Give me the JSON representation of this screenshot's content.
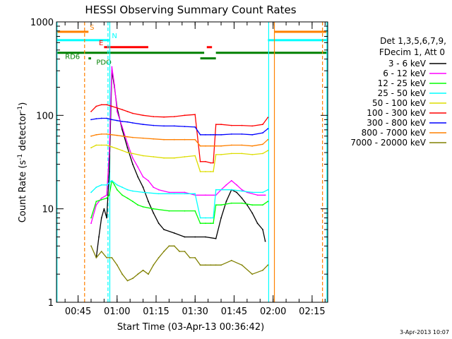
{
  "chart_data": {
    "type": "line",
    "title": "HESSI Observing Summary Count Rates",
    "xlabel": "Start Time (03-Apr-13 00:36:42)",
    "ylabel_main": "Count Rate (s",
    "ylabel_sup1": "-1",
    "ylabel_mid": " detector",
    "ylabel_sup2": "-1",
    "ylabel_end": ")",
    "y_scale": "log",
    "ylim": [
      1,
      1000
    ],
    "xlim_minutes": [
      36.7,
      141
    ],
    "x_ticks": [
      {
        "t": 45,
        "label": "00:45"
      },
      {
        "t": 60,
        "label": "01:00"
      },
      {
        "t": 75,
        "label": "01:15"
      },
      {
        "t": 90,
        "label": "01:30"
      },
      {
        "t": 105,
        "label": "01:45"
      },
      {
        "t": 120,
        "label": "02:00"
      },
      {
        "t": 135,
        "label": "02:15"
      }
    ],
    "y_ticks": [
      {
        "v": 1,
        "label": "1"
      },
      {
        "v": 10,
        "label": "10"
      },
      {
        "v": 100,
        "label": "100"
      },
      {
        "v": 1000,
        "label": "1000"
      }
    ],
    "timestamp": "3-Apr-2013 10:07",
    "legend": {
      "header1": "Det 1,3,5,6,7,9,",
      "header2": "FDecim 1, Att 0",
      "placement": "right"
    },
    "series": [
      {
        "name": "3 - 6 keV",
        "color": "#000000",
        "points": [
          [
            52,
            3
          ],
          [
            53,
            5
          ],
          [
            54,
            8
          ],
          [
            55,
            10
          ],
          [
            56,
            8
          ],
          [
            57,
            25
          ],
          [
            58,
            300
          ],
          [
            59,
            200
          ],
          [
            60,
            120
          ],
          [
            62,
            70
          ],
          [
            64,
            45
          ],
          [
            66,
            30
          ],
          [
            68,
            22
          ],
          [
            70,
            17
          ],
          [
            72,
            12
          ],
          [
            74,
            9
          ],
          [
            76,
            7
          ],
          [
            78,
            6
          ],
          [
            82,
            5.5
          ],
          [
            86,
            5
          ],
          [
            90,
            5
          ],
          [
            94,
            5
          ],
          [
            98,
            4.8
          ],
          [
            100,
            8
          ],
          [
            102,
            12
          ],
          [
            104,
            16
          ],
          [
            106,
            15
          ],
          [
            108,
            13
          ],
          [
            110,
            11
          ],
          [
            112,
            9
          ],
          [
            114,
            7
          ],
          [
            116,
            6
          ],
          [
            117,
            4.5
          ]
        ]
      },
      {
        "name": "6 - 12 keV",
        "color": "#ff00ff",
        "points": [
          [
            50,
            7
          ],
          [
            52,
            11
          ],
          [
            54,
            13
          ],
          [
            56,
            14
          ],
          [
            57,
            40
          ],
          [
            58,
            330
          ],
          [
            59,
            210
          ],
          [
            60,
            110
          ],
          [
            62,
            75
          ],
          [
            64,
            50
          ],
          [
            66,
            35
          ],
          [
            68,
            28
          ],
          [
            70,
            22
          ],
          [
            72,
            20
          ],
          [
            74,
            17
          ],
          [
            76,
            16
          ],
          [
            80,
            15
          ],
          [
            86,
            15
          ],
          [
            90,
            14
          ],
          [
            94,
            14
          ],
          [
            98,
            14
          ],
          [
            100,
            16
          ],
          [
            102,
            18
          ],
          [
            104,
            20
          ],
          [
            106,
            18
          ],
          [
            108,
            16
          ],
          [
            110,
            15
          ],
          [
            114,
            14
          ],
          [
            117,
            14
          ]
        ]
      },
      {
        "name": "12 - 25 keV",
        "color": "#00ff00",
        "points": [
          [
            50,
            8
          ],
          [
            52,
            12
          ],
          [
            54,
            12.5
          ],
          [
            56,
            13
          ],
          [
            57,
            14
          ],
          [
            58,
            20
          ],
          [
            59,
            18
          ],
          [
            60,
            16
          ],
          [
            62,
            14
          ],
          [
            64,
            13
          ],
          [
            66,
            12
          ],
          [
            68,
            11
          ],
          [
            70,
            10.5
          ],
          [
            74,
            10
          ],
          [
            80,
            9.5
          ],
          [
            86,
            9.5
          ],
          [
            90,
            9.5
          ],
          [
            92,
            7
          ],
          [
            94,
            7
          ],
          [
            96,
            7
          ],
          [
            97,
            7
          ],
          [
            98,
            11
          ],
          [
            100,
            11
          ],
          [
            104,
            11.5
          ],
          [
            108,
            11.5
          ],
          [
            112,
            11
          ],
          [
            116,
            11
          ],
          [
            118,
            12
          ]
        ]
      },
      {
        "name": "25 - 50 keV",
        "color": "#00ffff",
        "points": [
          [
            50,
            15
          ],
          [
            52,
            17
          ],
          [
            54,
            18
          ],
          [
            56,
            18
          ],
          [
            58,
            20
          ],
          [
            60,
            18
          ],
          [
            62,
            17
          ],
          [
            64,
            16
          ],
          [
            66,
            15.5
          ],
          [
            70,
            15
          ],
          [
            76,
            14.5
          ],
          [
            82,
            14.5
          ],
          [
            86,
            14.5
          ],
          [
            90,
            14.5
          ],
          [
            92,
            8
          ],
          [
            94,
            8
          ],
          [
            96,
            8
          ],
          [
            97,
            8
          ],
          [
            98,
            16
          ],
          [
            100,
            16
          ],
          [
            104,
            16
          ],
          [
            108,
            15.5
          ],
          [
            112,
            15
          ],
          [
            116,
            15
          ],
          [
            118,
            16
          ]
        ]
      },
      {
        "name": "50 - 100 keV",
        "color": "#dddd00",
        "points": [
          [
            50,
            45
          ],
          [
            52,
            48
          ],
          [
            54,
            48
          ],
          [
            56,
            48
          ],
          [
            58,
            46
          ],
          [
            60,
            44
          ],
          [
            62,
            42
          ],
          [
            64,
            40
          ],
          [
            66,
            39
          ],
          [
            70,
            37
          ],
          [
            74,
            36
          ],
          [
            78,
            35
          ],
          [
            82,
            35
          ],
          [
            86,
            36
          ],
          [
            90,
            37
          ],
          [
            92,
            25
          ],
          [
            94,
            25
          ],
          [
            96,
            25
          ],
          [
            97,
            25
          ],
          [
            98,
            38
          ],
          [
            100,
            38
          ],
          [
            104,
            39
          ],
          [
            108,
            39
          ],
          [
            112,
            38
          ],
          [
            116,
            39
          ],
          [
            118,
            42
          ]
        ]
      },
      {
        "name": "100 - 300 keV",
        "color": "#ff0000",
        "points": [
          [
            50,
            110
          ],
          [
            52,
            125
          ],
          [
            54,
            130
          ],
          [
            56,
            130
          ],
          [
            58,
            125
          ],
          [
            60,
            120
          ],
          [
            62,
            115
          ],
          [
            64,
            110
          ],
          [
            66,
            105
          ],
          [
            70,
            100
          ],
          [
            74,
            97
          ],
          [
            78,
            96
          ],
          [
            82,
            97
          ],
          [
            86,
            100
          ],
          [
            90,
            102
          ],
          [
            92,
            32
          ],
          [
            94,
            32
          ],
          [
            96,
            31
          ],
          [
            97,
            31
          ],
          [
            98,
            80
          ],
          [
            100,
            80
          ],
          [
            104,
            78
          ],
          [
            108,
            78
          ],
          [
            112,
            77
          ],
          [
            116,
            80
          ],
          [
            118,
            95
          ]
        ]
      },
      {
        "name": "300 - 800 keV",
        "color": "#0000ff",
        "points": [
          [
            50,
            90
          ],
          [
            52,
            92
          ],
          [
            54,
            93
          ],
          [
            56,
            93
          ],
          [
            58,
            90
          ],
          [
            60,
            88
          ],
          [
            62,
            86
          ],
          [
            64,
            85
          ],
          [
            66,
            83
          ],
          [
            70,
            80
          ],
          [
            74,
            78
          ],
          [
            78,
            77
          ],
          [
            82,
            77
          ],
          [
            86,
            76
          ],
          [
            90,
            75
          ],
          [
            92,
            62
          ],
          [
            94,
            62
          ],
          [
            96,
            62
          ],
          [
            97,
            62
          ],
          [
            98,
            62
          ],
          [
            100,
            62
          ],
          [
            104,
            63
          ],
          [
            108,
            63
          ],
          [
            112,
            62
          ],
          [
            116,
            65
          ],
          [
            118,
            72
          ]
        ]
      },
      {
        "name": "800 - 7000 keV",
        "color": "#ff8000",
        "points": [
          [
            50,
            60
          ],
          [
            52,
            62
          ],
          [
            54,
            63
          ],
          [
            56,
            63
          ],
          [
            58,
            62
          ],
          [
            60,
            61
          ],
          [
            62,
            60
          ],
          [
            64,
            59
          ],
          [
            66,
            58
          ],
          [
            70,
            57
          ],
          [
            74,
            56
          ],
          [
            78,
            55
          ],
          [
            82,
            55
          ],
          [
            86,
            55
          ],
          [
            90,
            55
          ],
          [
            92,
            47
          ],
          [
            94,
            47
          ],
          [
            96,
            47
          ],
          [
            97,
            47
          ],
          [
            98,
            47
          ],
          [
            100,
            47
          ],
          [
            104,
            48
          ],
          [
            108,
            48
          ],
          [
            112,
            47
          ],
          [
            116,
            49
          ],
          [
            118,
            55
          ]
        ]
      },
      {
        "name": "7000 - 20000 keV",
        "color": "#808000",
        "points": [
          [
            50,
            4
          ],
          [
            52,
            3
          ],
          [
            54,
            3.5
          ],
          [
            56,
            3
          ],
          [
            58,
            3
          ],
          [
            60,
            2.5
          ],
          [
            62,
            2
          ],
          [
            64,
            1.7
          ],
          [
            66,
            1.8
          ],
          [
            68,
            2
          ],
          [
            70,
            2.2
          ],
          [
            72,
            2
          ],
          [
            74,
            2.5
          ],
          [
            76,
            3
          ],
          [
            78,
            3.5
          ],
          [
            80,
            4
          ],
          [
            82,
            4
          ],
          [
            84,
            3.5
          ],
          [
            86,
            3.5
          ],
          [
            88,
            3
          ],
          [
            90,
            3
          ],
          [
            92,
            2.5
          ],
          [
            94,
            2.5
          ],
          [
            96,
            2.5
          ],
          [
            98,
            2.5
          ],
          [
            100,
            2.5
          ],
          [
            104,
            2.8
          ],
          [
            108,
            2.5
          ],
          [
            112,
            2
          ],
          [
            116,
            2.2
          ],
          [
            118,
            2.5
          ]
        ]
      }
    ],
    "state_bars": [
      {
        "label": "S",
        "color": "#ff8000",
        "y_frac": 0.015,
        "segments": [
          [
            36.7,
            49
          ],
          [
            120.5,
            141
          ]
        ],
        "label_at": 49.5
      },
      {
        "label": "N",
        "color": "#00ffff",
        "y_frac": 0.045,
        "segments": [
          [
            36.7,
            57
          ],
          [
            118,
            141
          ]
        ],
        "label_at": 58
      },
      {
        "label": "E",
        "color": "#ff0000",
        "y_frac": 0.07,
        "segments": [
          [
            55,
            72
          ],
          [
            94.5,
            96.5
          ]
        ],
        "label_at": 53
      },
      {
        "label": "RD6",
        "color": "#008000",
        "y_frac": 0.09,
        "segments": [
          [
            36.7,
            93.5
          ],
          [
            98,
            141
          ]
        ],
        "label_at": 40
      },
      {
        "label": "PDO",
        "color": "#008000",
        "y_frac": 0.11,
        "segments": [
          [
            49,
            50
          ],
          [
            92,
            98
          ]
        ],
        "label_at": 52
      }
    ],
    "vlines": [
      {
        "t": 47.5,
        "color": "#ff8000",
        "style": "dashed"
      },
      {
        "t": 56.5,
        "color": "#00ffff",
        "style": "dashed"
      },
      {
        "t": 120.5,
        "color": "#ff8000",
        "style": "solid"
      },
      {
        "t": 139,
        "color": "#ff8000",
        "style": "dashed"
      },
      {
        "t": 36.9,
        "color": "#00ffff",
        "style": "solid"
      },
      {
        "t": 57.2,
        "color": "#00ffff",
        "style": "solid"
      },
      {
        "t": 118.3,
        "color": "#00ffff",
        "style": "solid"
      },
      {
        "t": 140.7,
        "color": "#00ffff",
        "style": "solid"
      }
    ]
  }
}
